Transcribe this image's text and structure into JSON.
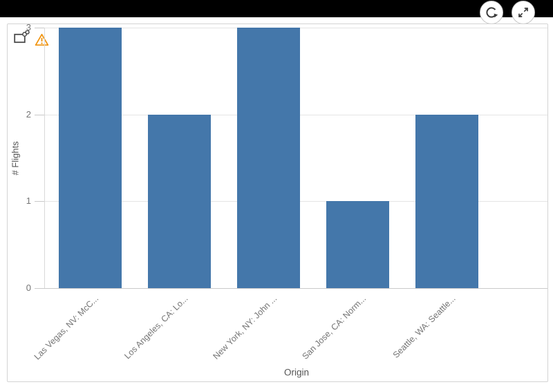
{
  "colors": {
    "bar": "#4477aa",
    "warning": "#f0930d",
    "topbar_bg": "#000000",
    "icon_dark": "#3a3a3a",
    "grid": "#e4e4e4",
    "axis": "#c9c9c9",
    "tick_text": "#757575",
    "title_text": "#545454"
  },
  "topbar": {
    "buttons": [
      {
        "name": "refresh",
        "icon": "refresh-icon"
      },
      {
        "name": "expand",
        "icon": "expand-icon"
      }
    ]
  },
  "chart_card": {
    "indicators": [
      {
        "name": "linked-object",
        "icon": "link-icon"
      },
      {
        "name": "warning",
        "icon": "warning-icon"
      }
    ]
  },
  "chart_data": {
    "type": "bar",
    "title": "",
    "categories": [
      "Las Vegas, NV: McC...",
      "Los Angeles, CA: Lo...",
      "New York, NY: John ...",
      "San Jose, CA: Norm...",
      "Seattle, WA: Seattle..."
    ],
    "values": [
      3,
      2,
      3,
      1,
      2
    ],
    "xlabel": "Origin",
    "ylabel": "# Flights",
    "yticks": [
      0,
      1,
      2,
      3
    ],
    "ylim": [
      0,
      3
    ],
    "grid": true,
    "legend": false,
    "bar_color": "#4477aa"
  }
}
